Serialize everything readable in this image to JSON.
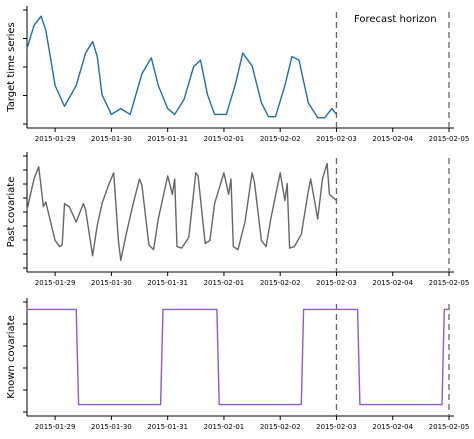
{
  "chart_data": [
    {
      "type": "line",
      "ylabel": "Target time series",
      "xlim": [
        "2015-01-28T12:00",
        "2015-02-05T00:00"
      ],
      "x_ticks": [
        "2015-01-29",
        "2015-01-30",
        "2015-01-31",
        "2015-02-01",
        "2015-02-02",
        "2015-02-03",
        "2015-02-04",
        "2015-02-05"
      ],
      "y_tick_count": 5,
      "vertical_lines": [
        "2015-02-03",
        "2015-02-05"
      ],
      "annotation": "Forecast horizon",
      "series": [
        {
          "color": "#1f6fad",
          "x": [
            "2015-01-28T12:00",
            "2015-01-28T15:00",
            "2015-01-28T18:00",
            "2015-01-28T20:00",
            "2015-01-29T00:00",
            "2015-01-29T04:00",
            "2015-01-29T09:00",
            "2015-01-29T13:00",
            "2015-01-29T16:00",
            "2015-01-29T18:00",
            "2015-01-29T20:00",
            "2015-01-30T00:00",
            "2015-01-30T04:00",
            "2015-01-30T08:00",
            "2015-01-30T13:00",
            "2015-01-30T17:00",
            "2015-01-30T20:00",
            "2015-01-31T00:00",
            "2015-01-31T03:00",
            "2015-01-31T07:00",
            "2015-01-31T11:00",
            "2015-01-31T14:00",
            "2015-01-31T17:00",
            "2015-01-31T20:00",
            "2015-02-01T01:00",
            "2015-02-01T05:00",
            "2015-02-01T08:00",
            "2015-02-01T12:00",
            "2015-02-01T16:00",
            "2015-02-01T19:00",
            "2015-02-01T22:00",
            "2015-02-02T02:00",
            "2015-02-02T05:00",
            "2015-02-02T08:00",
            "2015-02-02T12:00",
            "2015-02-02T16:00",
            "2015-02-02T19:00",
            "2015-02-02T22:00",
            "2015-02-03T00:00"
          ],
          "y": [
            0.62,
            0.82,
            0.9,
            0.78,
            0.3,
            0.12,
            0.3,
            0.58,
            0.68,
            0.55,
            0.22,
            0.05,
            0.1,
            0.05,
            0.4,
            0.54,
            0.3,
            0.1,
            0.05,
            0.18,
            0.46,
            0.52,
            0.22,
            0.05,
            0.05,
            0.32,
            0.58,
            0.47,
            0.15,
            0.03,
            0.03,
            0.3,
            0.55,
            0.52,
            0.15,
            0.02,
            0.02,
            0.1,
            0.05
          ]
        }
      ]
    },
    {
      "type": "line",
      "ylabel": "Past covariate",
      "xlim": [
        "2015-01-28T12:00",
        "2015-02-05T00:00"
      ],
      "x_ticks": [
        "2015-01-29",
        "2015-01-30",
        "2015-01-31",
        "2015-02-01",
        "2015-02-02",
        "2015-02-03",
        "2015-02-04",
        "2015-02-05"
      ],
      "y_tick_count": 9,
      "vertical_lines": [
        "2015-02-03",
        "2015-02-05"
      ],
      "series": [
        {
          "color": "#666666",
          "x": [
            "2015-01-28T12:00",
            "2015-01-28T15:00",
            "2015-01-28T17:00",
            "2015-01-28T19:00",
            "2015-01-28T20:00",
            "2015-01-29T00:00",
            "2015-01-29T02:00",
            "2015-01-29T03:00",
            "2015-01-29T04:00",
            "2015-01-29T06:00",
            "2015-01-29T09:00",
            "2015-01-29T12:00",
            "2015-01-29T13:00",
            "2015-01-29T16:00",
            "2015-01-29T18:00",
            "2015-01-29T20:00",
            "2015-01-29T23:00",
            "2015-01-30T01:00",
            "2015-01-30T03:00",
            "2015-01-30T04:00",
            "2015-01-30T06:00",
            "2015-01-30T09:00",
            "2015-01-30T12:00",
            "2015-01-30T13:00",
            "2015-01-30T16:00",
            "2015-01-30T18:00",
            "2015-01-30T20:00",
            "2015-01-31T00:00",
            "2015-01-31T02:00",
            "2015-01-31T03:00",
            "2015-01-31T04:00",
            "2015-01-31T06:00",
            "2015-01-31T09:00",
            "2015-01-31T12:00",
            "2015-01-31T13:00",
            "2015-01-31T16:00",
            "2015-01-31T18:00",
            "2015-01-31T20:00",
            "2015-02-01T00:00",
            "2015-02-01T02:00",
            "2015-02-01T03:00",
            "2015-02-01T04:00",
            "2015-02-01T06:00",
            "2015-02-01T09:00",
            "2015-02-01T12:00",
            "2015-02-01T13:00",
            "2015-02-01T16:00",
            "2015-02-01T18:00",
            "2015-02-01T20:00",
            "2015-02-02T00:00",
            "2015-02-02T02:00",
            "2015-02-02T03:00",
            "2015-02-02T04:00",
            "2015-02-02T06:00",
            "2015-02-02T09:00",
            "2015-02-02T12:00",
            "2015-02-02T13:00",
            "2015-02-02T16:00",
            "2015-02-02T18:00",
            "2015-02-02T20:00",
            "2015-02-02T21:00",
            "2015-02-03T00:00"
          ],
          "y": [
            0.58,
            0.78,
            0.86,
            0.6,
            0.63,
            0.38,
            0.34,
            0.35,
            0.62,
            0.6,
            0.5,
            0.62,
            0.58,
            0.28,
            0.48,
            0.62,
            0.75,
            0.82,
            0.38,
            0.25,
            0.4,
            0.6,
            0.78,
            0.74,
            0.35,
            0.32,
            0.52,
            0.8,
            0.68,
            0.78,
            0.34,
            0.33,
            0.4,
            0.82,
            0.8,
            0.36,
            0.38,
            0.62,
            0.82,
            0.68,
            0.78,
            0.34,
            0.32,
            0.5,
            0.82,
            0.76,
            0.38,
            0.34,
            0.52,
            0.82,
            0.64,
            0.75,
            0.33,
            0.34,
            0.42,
            0.7,
            0.78,
            0.52,
            0.78,
            0.88,
            0.68,
            0.64
          ]
        }
      ]
    },
    {
      "type": "line",
      "ylabel": "Known covariate",
      "xlim": [
        "2015-01-28T12:00",
        "2015-02-05T00:00"
      ],
      "x_ticks": [
        "2015-01-29",
        "2015-01-30",
        "2015-01-31",
        "2015-02-01",
        "2015-02-02",
        "2015-02-03",
        "2015-02-04",
        "2015-02-05"
      ],
      "y_tick_count": 6,
      "vertical_lines": [
        "2015-02-03",
        "2015-02-05"
      ],
      "series": [
        {
          "color": "#8e5bd0",
          "x": [
            "2015-01-28T12:00",
            "2015-01-29T09:00",
            "2015-01-29T10:00",
            "2015-01-30T21:00",
            "2015-01-30T22:00",
            "2015-01-31T21:00",
            "2015-01-31T22:00",
            "2015-02-02T09:00",
            "2015-02-02T10:00",
            "2015-02-03T09:00",
            "2015-02-03T10:00",
            "2015-02-04T21:00",
            "2015-02-04T22:00",
            "2015-02-05T00:00"
          ],
          "y": [
            1,
            1,
            0,
            0,
            1,
            1,
            0,
            0,
            1,
            1,
            0,
            0,
            1,
            1
          ]
        }
      ]
    }
  ]
}
